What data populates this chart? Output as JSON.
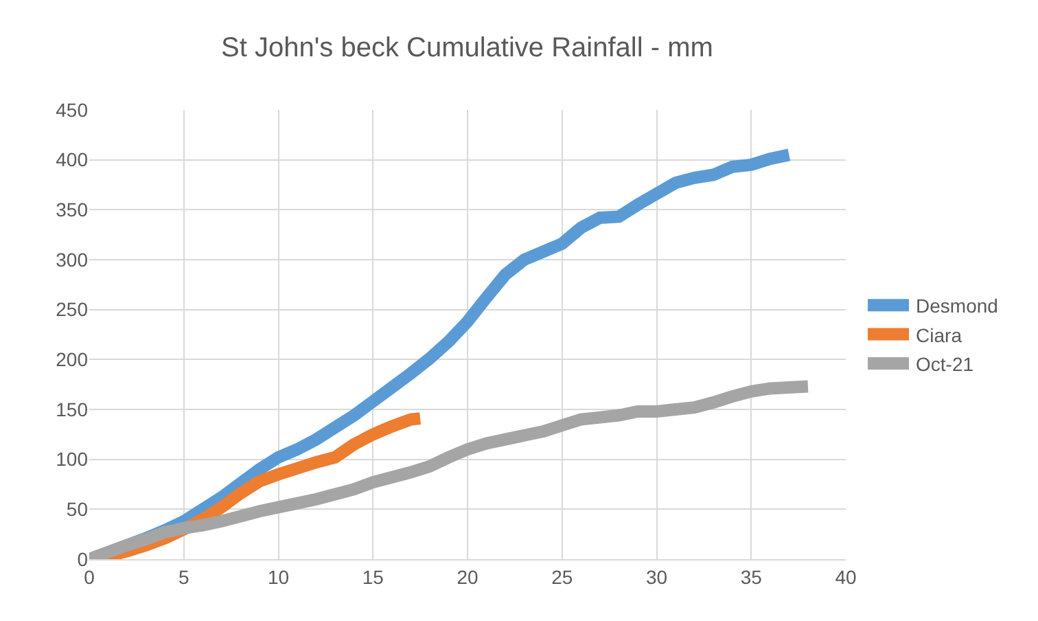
{
  "chart_data": {
    "type": "line",
    "title": "St John's beck Cumulative Rainfall - mm",
    "xlim": [
      0,
      40
    ],
    "xticks": [
      0,
      5,
      10,
      15,
      20,
      25,
      30,
      35,
      40
    ],
    "ylim": [
      0,
      450
    ],
    "yticks": [
      0,
      50,
      100,
      150,
      200,
      250,
      300,
      350,
      400,
      450
    ],
    "grid": true,
    "legend": "right",
    "marker": "none",
    "line_style": "solid",
    "series": [
      {
        "name": "Desmond",
        "color": "#5b9bd5",
        "x": [
          0,
          1,
          2,
          3,
          4,
          5,
          6,
          7,
          8,
          9,
          10,
          11,
          12,
          13,
          14,
          15,
          16,
          17,
          18,
          19,
          20,
          21,
          22,
          23,
          24,
          25,
          26,
          27,
          28,
          29,
          30,
          31,
          32,
          33,
          34,
          35,
          36,
          37
        ],
        "values": [
          0,
          7,
          14,
          21,
          29,
          38,
          50,
          62,
          76,
          90,
          102,
          110,
          120,
          132,
          144,
          158,
          172,
          186,
          201,
          218,
          238,
          262,
          285,
          300,
          308,
          316,
          332,
          342,
          343,
          355,
          366,
          377,
          382,
          385,
          393,
          395,
          401,
          405
        ]
      },
      {
        "name": "Ciara",
        "color": "#ed7d31",
        "x": [
          0,
          1,
          2,
          3,
          4,
          5,
          6,
          7,
          8,
          9,
          10,
          11,
          12,
          13,
          14,
          15,
          16,
          17,
          17.5
        ],
        "values": [
          0,
          3,
          8,
          14,
          21,
          30,
          40,
          52,
          66,
          78,
          85,
          91,
          97,
          102,
          115,
          125,
          133,
          140,
          141
        ]
      },
      {
        "name": "Oct-21",
        "color": "#a5a5a5",
        "x": [
          0,
          1,
          2,
          3,
          4,
          5,
          6,
          7,
          8,
          9,
          10,
          11,
          12,
          13,
          14,
          15,
          16,
          17,
          18,
          19,
          20,
          21,
          22,
          23,
          24,
          25,
          26,
          27,
          28,
          29,
          30,
          31,
          32,
          33,
          34,
          35,
          36,
          37,
          38
        ],
        "values": [
          0,
          7,
          14,
          20,
          27,
          31,
          34,
          38,
          43,
          48,
          52,
          56,
          60,
          65,
          70,
          77,
          82,
          87,
          93,
          102,
          110,
          116,
          120,
          124,
          128,
          134,
          140,
          142,
          144,
          148,
          148,
          150,
          152,
          157,
          163,
          168,
          171,
          172,
          173
        ]
      }
    ]
  }
}
